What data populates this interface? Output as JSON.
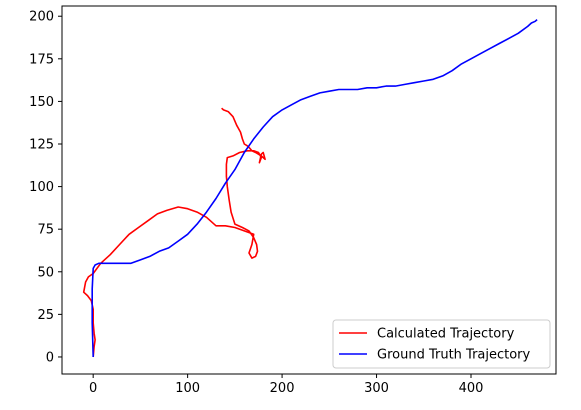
{
  "chart_data": {
    "type": "line",
    "title": "",
    "xlabel": "",
    "ylabel": "",
    "xlim": [
      -33,
      490
    ],
    "ylim": [
      -10,
      206
    ],
    "xticks": [
      0,
      100,
      200,
      300,
      400
    ],
    "yticks": [
      0,
      25,
      50,
      75,
      100,
      125,
      150,
      175,
      200
    ],
    "grid": false,
    "legend_position": "lower-right",
    "series": [
      {
        "name": "Calculated Trajectory",
        "color": "#ff0000",
        "points": [
          [
            0,
            0
          ],
          [
            1,
            6
          ],
          [
            2,
            10
          ],
          [
            1,
            14
          ],
          [
            0,
            20
          ],
          [
            0,
            28
          ],
          [
            -2,
            33
          ],
          [
            -6,
            36
          ],
          [
            -10,
            38
          ],
          [
            -8,
            44
          ],
          [
            -5,
            47
          ],
          [
            0,
            49
          ],
          [
            8,
            55
          ],
          [
            18,
            60
          ],
          [
            28,
            66
          ],
          [
            38,
            72
          ],
          [
            48,
            76
          ],
          [
            58,
            80
          ],
          [
            68,
            84
          ],
          [
            78,
            86
          ],
          [
            90,
            88
          ],
          [
            100,
            87
          ],
          [
            110,
            85
          ],
          [
            120,
            82
          ],
          [
            130,
            77
          ],
          [
            140,
            77
          ],
          [
            150,
            76
          ],
          [
            160,
            74
          ],
          [
            170,
            72
          ],
          [
            168,
            66
          ],
          [
            165,
            61
          ],
          [
            168,
            58
          ],
          [
            172,
            59
          ],
          [
            174,
            62
          ],
          [
            173,
            66
          ],
          [
            170,
            70
          ],
          [
            165,
            74
          ],
          [
            158,
            76
          ],
          [
            150,
            78
          ],
          [
            146,
            85
          ],
          [
            144,
            92
          ],
          [
            142,
            100
          ],
          [
            141,
            106
          ],
          [
            141,
            113
          ],
          [
            142,
            117
          ],
          [
            148,
            118
          ],
          [
            155,
            120
          ],
          [
            163,
            121
          ],
          [
            170,
            121
          ],
          [
            175,
            120
          ],
          [
            178,
            117
          ],
          [
            176,
            114
          ],
          [
            178,
            119
          ],
          [
            180,
            120
          ],
          [
            182,
            116
          ],
          [
            178,
            118
          ],
          [
            172,
            120
          ],
          [
            168,
            121
          ],
          [
            165,
            123
          ],
          [
            163,
            124
          ],
          [
            160,
            125
          ],
          [
            158,
            128
          ],
          [
            156,
            132
          ],
          [
            152,
            136
          ],
          [
            148,
            141
          ],
          [
            143,
            144
          ],
          [
            138,
            145
          ],
          [
            136,
            146
          ]
        ]
      },
      {
        "name": "Ground Truth Trajectory",
        "color": "#0000ff",
        "points": [
          [
            0,
            0
          ],
          [
            -1,
            20
          ],
          [
            -1,
            40
          ],
          [
            0,
            52
          ],
          [
            2,
            54
          ],
          [
            6,
            55
          ],
          [
            12,
            55
          ],
          [
            20,
            55
          ],
          [
            30,
            55
          ],
          [
            40,
            55
          ],
          [
            50,
            57
          ],
          [
            60,
            59
          ],
          [
            70,
            62
          ],
          [
            80,
            64
          ],
          [
            90,
            68
          ],
          [
            100,
            72
          ],
          [
            110,
            78
          ],
          [
            120,
            85
          ],
          [
            130,
            93
          ],
          [
            140,
            102
          ],
          [
            150,
            110
          ],
          [
            160,
            120
          ],
          [
            170,
            128
          ],
          [
            180,
            135
          ],
          [
            190,
            141
          ],
          [
            200,
            145
          ],
          [
            210,
            148
          ],
          [
            220,
            151
          ],
          [
            230,
            153
          ],
          [
            240,
            155
          ],
          [
            250,
            156
          ],
          [
            260,
            157
          ],
          [
            270,
            157
          ],
          [
            280,
            157
          ],
          [
            290,
            158
          ],
          [
            300,
            158
          ],
          [
            310,
            159
          ],
          [
            320,
            159
          ],
          [
            330,
            160
          ],
          [
            340,
            161
          ],
          [
            350,
            162
          ],
          [
            360,
            163
          ],
          [
            370,
            165
          ],
          [
            380,
            168
          ],
          [
            390,
            172
          ],
          [
            400,
            175
          ],
          [
            410,
            178
          ],
          [
            420,
            181
          ],
          [
            430,
            184
          ],
          [
            440,
            187
          ],
          [
            450,
            190
          ],
          [
            460,
            194
          ],
          [
            464,
            196
          ],
          [
            468,
            197
          ],
          [
            470,
            198
          ]
        ]
      }
    ]
  }
}
